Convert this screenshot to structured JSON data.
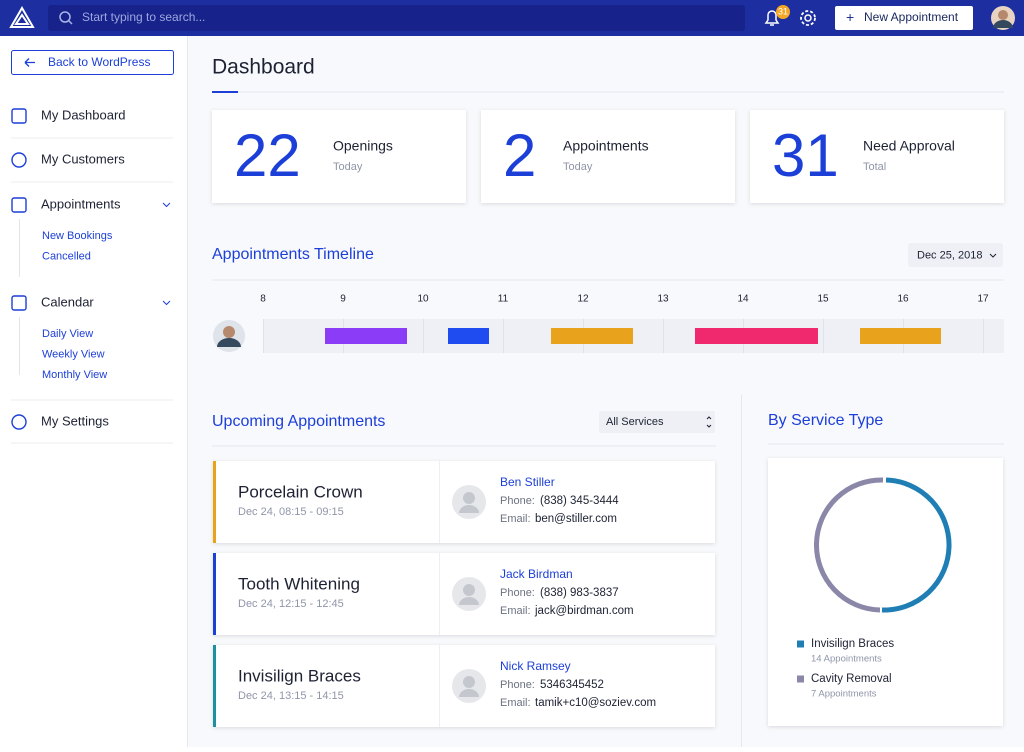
{
  "header": {
    "search_placeholder": "Start typing to search...",
    "notification_count": "31",
    "new_button": "New Appointment"
  },
  "sidebar": {
    "back": "Back to WordPress",
    "items": [
      {
        "label": "My Dashboard"
      },
      {
        "label": "My Customers"
      },
      {
        "label": "Appointments",
        "children": [
          "New Bookings",
          "Cancelled"
        ]
      },
      {
        "label": "Calendar",
        "children": [
          "Daily View",
          "Weekly View",
          "Monthly View"
        ]
      },
      {
        "label": "My Settings"
      }
    ]
  },
  "page_title": "Dashboard",
  "stats": [
    {
      "number": "22",
      "label": "Openings",
      "sub": "Today"
    },
    {
      "number": "2",
      "label": "Appointments",
      "sub": "Today"
    },
    {
      "number": "31",
      "label": "Need Approval",
      "sub": "Total"
    }
  ],
  "timeline": {
    "title": "Appointments Timeline",
    "date": "Dec 25, 2018",
    "hours": [
      "8",
      "9",
      "10",
      "11",
      "12",
      "13",
      "14",
      "15",
      "16",
      "17"
    ]
  },
  "upcoming": {
    "title": "Upcoming Appointments",
    "filter": "All Services",
    "appointments": [
      {
        "service": "Porcelain Crown",
        "time": "Dec 24, 08:15 - 09:15",
        "name": "Ben Stiller",
        "phone_label": "Phone:",
        "phone": "(838) 345-3444",
        "email_label": "Email:",
        "email": "ben@stiller.com"
      },
      {
        "service": "Tooth Whitening",
        "time": "Dec 24, 12:15 - 12:45",
        "name": "Jack Birdman",
        "phone_label": "Phone:",
        "phone": "(838) 983-3837",
        "email_label": "Email:",
        "email": "jack@birdman.com"
      },
      {
        "service": "Invisilign Braces",
        "time": "Dec 24, 13:15 - 14:15",
        "name": "Nick Ramsey",
        "phone_label": "Phone:",
        "phone": "5346345452",
        "email_label": "Email:",
        "email": "tamik+c10@soziev.com"
      }
    ]
  },
  "by_service": {
    "title": "By Service Type",
    "legend": [
      {
        "name": "Invisilign Braces",
        "count": "14 Appointments"
      },
      {
        "name": "Cavity Removal",
        "count": "7 Appointments"
      }
    ]
  }
}
